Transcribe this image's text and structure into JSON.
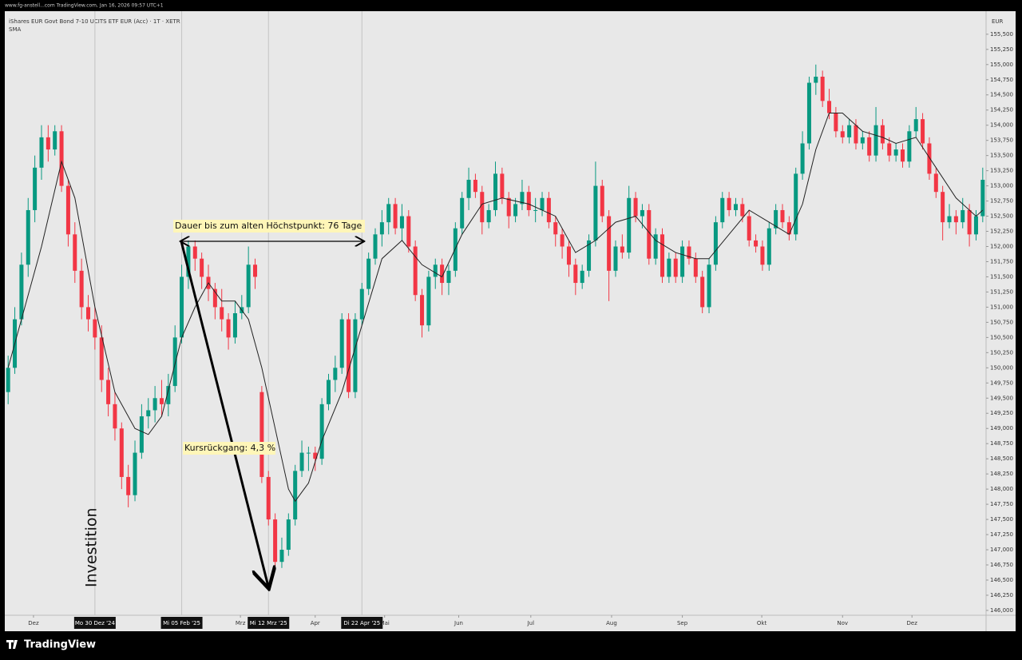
{
  "header": {
    "caption": "www.fg-anstell...com TradingView.com, Jan 16, 2026 09:57 UTC+1"
  },
  "chart_data": {
    "type": "candlestick",
    "title": "iShares EUR Govt Bond 7-10 UCITS ETF EUR (Acc) · 1T · XETR",
    "indicator_label": "SMA",
    "currency": "EUR",
    "up_color": "#089981",
    "down_color": "#f23645",
    "sma_color": "#222222",
    "grid": false,
    "xlim": [
      -0.5,
      146.5
    ],
    "ylim": [
      145.92,
      155.88
    ],
    "xticks": [
      {
        "value": 3.8,
        "label": "Dez"
      },
      {
        "value": 34.8,
        "label": "Mrz"
      },
      {
        "value": 46,
        "label": "Apr"
      },
      {
        "value": 56.4,
        "label": "Mai"
      },
      {
        "value": 67.5,
        "label": "Jun"
      },
      {
        "value": 78.3,
        "label": "Jul"
      },
      {
        "value": 90.4,
        "label": "Aug"
      },
      {
        "value": 101,
        "label": "Sep"
      },
      {
        "value": 112.9,
        "label": "Okt"
      },
      {
        "value": 125,
        "label": "Nov"
      },
      {
        "value": 135.4,
        "label": "Dez"
      }
    ],
    "date_markers": [
      {
        "value": 13,
        "label": "Mo 30 Dez '24"
      },
      {
        "value": 26,
        "label": "Mi 05 Feb '25"
      },
      {
        "value": 39,
        "label": "Mi 12 Mrz '25"
      },
      {
        "value": 53,
        "label": "Di 22 Apr '25"
      }
    ],
    "yticks": [
      {
        "value": 146.0,
        "label": "146,000"
      },
      {
        "value": 146.25,
        "label": "146,250"
      },
      {
        "value": 146.5,
        "label": "146,500"
      },
      {
        "value": 146.75,
        "label": "146,750"
      },
      {
        "value": 147.0,
        "label": "147,000"
      },
      {
        "value": 147.25,
        "label": "147,250"
      },
      {
        "value": 147.5,
        "label": "147,500"
      },
      {
        "value": 147.75,
        "label": "147,750"
      },
      {
        "value": 148.0,
        "label": "148,000"
      },
      {
        "value": 148.25,
        "label": "148,250"
      },
      {
        "value": 148.5,
        "label": "148,500"
      },
      {
        "value": 148.75,
        "label": "148,750"
      },
      {
        "value": 149.0,
        "label": "149,000"
      },
      {
        "value": 149.25,
        "label": "149,250"
      },
      {
        "value": 149.5,
        "label": "149,500"
      },
      {
        "value": 149.75,
        "label": "149,750"
      },
      {
        "value": 150.0,
        "label": "150,000"
      },
      {
        "value": 150.25,
        "label": "150,250"
      },
      {
        "value": 150.5,
        "label": "150,500"
      },
      {
        "value": 150.75,
        "label": "150,750"
      },
      {
        "value": 151.0,
        "label": "151,000"
      },
      {
        "value": 151.25,
        "label": "151,250"
      },
      {
        "value": 151.5,
        "label": "151,500"
      },
      {
        "value": 151.75,
        "label": "151,750"
      },
      {
        "value": 152.0,
        "label": "152,000"
      },
      {
        "value": 152.25,
        "label": "152,250"
      },
      {
        "value": 152.5,
        "label": "152,500"
      },
      {
        "value": 152.75,
        "label": "152,750"
      },
      {
        "value": 153.0,
        "label": "153,000"
      },
      {
        "value": 153.25,
        "label": "153,250"
      },
      {
        "value": 153.5,
        "label": "153,500"
      },
      {
        "value": 153.75,
        "label": "153,750"
      },
      {
        "value": 154.0,
        "label": "154,000"
      },
      {
        "value": 154.25,
        "label": "154,250"
      },
      {
        "value": 154.5,
        "label": "154,500"
      },
      {
        "value": 154.75,
        "label": "154,750"
      },
      {
        "value": 155.0,
        "label": "155,000"
      },
      {
        "value": 155.25,
        "label": "155,250"
      },
      {
        "value": 155.5,
        "label": "155,500"
      }
    ],
    "ohlc": [
      [
        149.6,
        150.2,
        149.4,
        150.0
      ],
      [
        150.0,
        151.0,
        149.9,
        150.8
      ],
      [
        150.8,
        151.9,
        150.7,
        151.7
      ],
      [
        151.7,
        152.8,
        151.5,
        152.6
      ],
      [
        152.6,
        153.5,
        152.4,
        153.3
      ],
      [
        153.3,
        154.0,
        153.1,
        153.8
      ],
      [
        153.8,
        154.0,
        153.4,
        153.6
      ],
      [
        153.6,
        154.0,
        153.5,
        153.9
      ],
      [
        153.9,
        154.0,
        152.9,
        153.0
      ],
      [
        153.0,
        153.1,
        152.0,
        152.2
      ],
      [
        152.2,
        152.4,
        151.4,
        151.6
      ],
      [
        151.6,
        151.8,
        150.8,
        151.0
      ],
      [
        151.0,
        151.2,
        150.6,
        150.8
      ],
      [
        150.8,
        151.0,
        150.3,
        150.5
      ],
      [
        150.5,
        150.7,
        149.6,
        149.8
      ],
      [
        149.8,
        150.0,
        149.2,
        149.4
      ],
      [
        149.4,
        149.6,
        148.8,
        149.0
      ],
      [
        149.0,
        149.1,
        148.0,
        148.2
      ],
      [
        148.2,
        148.4,
        147.7,
        147.9
      ],
      [
        147.9,
        148.8,
        147.8,
        148.6
      ],
      [
        148.6,
        149.4,
        148.5,
        149.2
      ],
      [
        149.2,
        149.5,
        149.0,
        149.3
      ],
      [
        149.3,
        149.7,
        149.1,
        149.5
      ],
      [
        149.5,
        149.8,
        149.2,
        149.4
      ],
      [
        149.4,
        149.9,
        149.2,
        149.7
      ],
      [
        149.7,
        150.7,
        149.6,
        150.5
      ],
      [
        150.5,
        151.7,
        150.4,
        151.5
      ],
      [
        151.5,
        152.1,
        151.3,
        152.0
      ],
      [
        152.0,
        152.1,
        151.6,
        151.8
      ],
      [
        151.8,
        151.9,
        151.3,
        151.5
      ],
      [
        151.5,
        151.7,
        151.1,
        151.3
      ],
      [
        151.3,
        151.4,
        150.8,
        151.0
      ],
      [
        151.0,
        151.3,
        150.6,
        150.8
      ],
      [
        150.8,
        150.9,
        150.3,
        150.5
      ],
      [
        150.5,
        151.1,
        150.4,
        150.9
      ],
      [
        150.9,
        151.2,
        150.8,
        151.0
      ],
      [
        151.0,
        152.0,
        150.9,
        151.7
      ],
      [
        151.7,
        151.8,
        151.3,
        151.5
      ],
      [
        149.6,
        149.7,
        148.1,
        148.2
      ],
      [
        148.2,
        148.3,
        147.4,
        147.5
      ],
      [
        147.5,
        147.6,
        146.7,
        146.8
      ],
      [
        146.8,
        147.2,
        146.7,
        147.0
      ],
      [
        147.0,
        147.6,
        146.9,
        147.5
      ],
      [
        147.5,
        148.4,
        147.4,
        148.3
      ],
      [
        148.3,
        148.8,
        148.2,
        148.6
      ],
      [
        148.6,
        148.7,
        148.3,
        148.6
      ],
      [
        148.6,
        148.7,
        148.3,
        148.5
      ],
      [
        148.5,
        149.5,
        148.4,
        149.4
      ],
      [
        149.4,
        149.9,
        149.3,
        149.8
      ],
      [
        149.8,
        150.2,
        149.6,
        150.0
      ],
      [
        150.0,
        150.9,
        149.9,
        150.8
      ],
      [
        150.8,
        150.9,
        149.5,
        149.6
      ],
      [
        149.6,
        150.9,
        149.5,
        150.8
      ],
      [
        150.8,
        151.4,
        150.7,
        151.3
      ],
      [
        151.3,
        151.9,
        151.2,
        151.8
      ],
      [
        151.8,
        152.3,
        151.7,
        152.2
      ],
      [
        152.2,
        152.6,
        152.0,
        152.4
      ],
      [
        152.4,
        152.8,
        152.2,
        152.7
      ],
      [
        152.7,
        152.8,
        152.2,
        152.3
      ],
      [
        152.3,
        152.7,
        152.1,
        152.5
      ],
      [
        152.5,
        152.6,
        151.9,
        152.0
      ],
      [
        152.0,
        152.1,
        151.1,
        151.2
      ],
      [
        151.2,
        151.3,
        150.5,
        150.7
      ],
      [
        150.7,
        151.6,
        150.6,
        151.5
      ],
      [
        151.5,
        151.8,
        151.3,
        151.7
      ],
      [
        151.7,
        151.8,
        151.2,
        151.4
      ],
      [
        151.4,
        151.7,
        151.2,
        151.6
      ],
      [
        151.6,
        152.4,
        151.5,
        152.3
      ],
      [
        152.3,
        152.9,
        152.2,
        152.8
      ],
      [
        152.8,
        153.3,
        152.6,
        153.1
      ],
      [
        153.1,
        153.2,
        152.8,
        152.9
      ],
      [
        152.9,
        153.0,
        152.2,
        152.4
      ],
      [
        152.4,
        152.7,
        152.3,
        152.6
      ],
      [
        152.6,
        153.4,
        152.5,
        153.2
      ],
      [
        153.2,
        153.3,
        152.7,
        152.8
      ],
      [
        152.8,
        152.9,
        152.3,
        152.5
      ],
      [
        152.5,
        152.8,
        152.4,
        152.7
      ],
      [
        152.7,
        153.1,
        152.6,
        152.9
      ],
      [
        152.9,
        153.0,
        152.5,
        152.6
      ],
      [
        152.6,
        152.8,
        152.4,
        152.6
      ],
      [
        152.6,
        152.9,
        152.5,
        152.8
      ],
      [
        152.8,
        152.9,
        152.3,
        152.4
      ],
      [
        152.4,
        152.5,
        152.0,
        152.2
      ],
      [
        152.2,
        152.3,
        151.8,
        152.0
      ],
      [
        152.0,
        152.1,
        151.5,
        151.7
      ],
      [
        151.7,
        151.8,
        151.2,
        151.4
      ],
      [
        151.4,
        151.7,
        151.3,
        151.6
      ],
      [
        151.6,
        152.2,
        151.5,
        152.1
      ],
      [
        152.1,
        153.4,
        152.0,
        153.0
      ],
      [
        153.0,
        153.1,
        152.4,
        152.5
      ],
      [
        152.5,
        152.6,
        151.1,
        151.6
      ],
      [
        151.6,
        152.1,
        151.5,
        152.0
      ],
      [
        152.0,
        152.2,
        151.8,
        151.9
      ],
      [
        151.9,
        153.0,
        151.8,
        152.8
      ],
      [
        152.8,
        152.9,
        152.4,
        152.5
      ],
      [
        152.5,
        152.7,
        152.3,
        152.6
      ],
      [
        152.6,
        152.7,
        151.7,
        151.8
      ],
      [
        151.8,
        152.3,
        151.7,
        152.2
      ],
      [
        152.2,
        152.3,
        151.4,
        151.5
      ],
      [
        151.5,
        151.9,
        151.4,
        151.8
      ],
      [
        151.8,
        151.9,
        151.4,
        151.5
      ],
      [
        151.5,
        152.1,
        151.4,
        152.0
      ],
      [
        152.0,
        152.1,
        151.7,
        151.8
      ],
      [
        151.8,
        151.9,
        151.4,
        151.5
      ],
      [
        151.5,
        151.6,
        150.9,
        151.0
      ],
      [
        151.0,
        151.8,
        150.9,
        151.7
      ],
      [
        151.7,
        152.5,
        151.6,
        152.4
      ],
      [
        152.4,
        152.9,
        152.3,
        152.8
      ],
      [
        152.8,
        152.9,
        152.5,
        152.6
      ],
      [
        152.6,
        152.8,
        152.5,
        152.7
      ],
      [
        152.7,
        152.8,
        152.4,
        152.5
      ],
      [
        152.5,
        152.6,
        152.0,
        152.1
      ],
      [
        152.1,
        152.2,
        151.9,
        152.0
      ],
      [
        152.0,
        152.1,
        151.6,
        151.7
      ],
      [
        151.7,
        152.4,
        151.6,
        152.3
      ],
      [
        152.3,
        152.7,
        152.2,
        152.6
      ],
      [
        152.6,
        152.7,
        152.3,
        152.4
      ],
      [
        152.4,
        152.5,
        152.1,
        152.2
      ],
      [
        152.2,
        153.3,
        152.1,
        153.2
      ],
      [
        153.2,
        153.9,
        153.1,
        153.7
      ],
      [
        153.7,
        154.8,
        153.6,
        154.7
      ],
      [
        154.7,
        155.0,
        154.5,
        154.8
      ],
      [
        154.8,
        154.9,
        154.3,
        154.4
      ],
      [
        154.4,
        154.6,
        154.1,
        154.2
      ],
      [
        154.2,
        154.3,
        153.8,
        153.9
      ],
      [
        153.9,
        154.0,
        153.7,
        153.8
      ],
      [
        153.8,
        154.1,
        153.7,
        154.0
      ],
      [
        154.0,
        154.1,
        153.6,
        153.7
      ],
      [
        153.7,
        153.9,
        153.6,
        153.8
      ],
      [
        153.8,
        153.9,
        153.4,
        153.5
      ],
      [
        153.5,
        154.3,
        153.4,
        154.0
      ],
      [
        154.0,
        154.1,
        153.6,
        153.7
      ],
      [
        153.7,
        153.8,
        153.4,
        153.5
      ],
      [
        153.5,
        153.7,
        153.4,
        153.6
      ],
      [
        153.6,
        153.7,
        153.3,
        153.4
      ],
      [
        153.4,
        154.0,
        153.3,
        153.9
      ],
      [
        153.9,
        154.3,
        153.8,
        154.1
      ],
      [
        154.1,
        154.2,
        153.6,
        153.7
      ],
      [
        153.7,
        153.8,
        153.1,
        153.2
      ],
      [
        153.2,
        153.3,
        152.8,
        152.9
      ],
      [
        152.9,
        153.0,
        152.1,
        152.4
      ],
      [
        152.4,
        152.7,
        152.3,
        152.5
      ],
      [
        152.5,
        152.6,
        152.2,
        152.4
      ],
      [
        152.4,
        152.8,
        152.3,
        152.6
      ],
      [
        152.6,
        152.7,
        152.0,
        152.2
      ],
      [
        152.2,
        152.6,
        152.1,
        152.5
      ],
      [
        152.5,
        153.3,
        152.4,
        153.1
      ]
    ],
    "sma": {
      "x": [
        0,
        5,
        8,
        10,
        13,
        16,
        19,
        21,
        23,
        26,
        28,
        30,
        32,
        34,
        36,
        38,
        40,
        42,
        43,
        45,
        47,
        50,
        53,
        56,
        59,
        62,
        65,
        68,
        71,
        74,
        78,
        82,
        85,
        88,
        91,
        94,
        97,
        100,
        103,
        105,
        108,
        111,
        114,
        117,
        119,
        121,
        123,
        125,
        128,
        131,
        133,
        136,
        139,
        142,
        145,
        146
      ],
      "values": [
        150.0,
        152.0,
        153.4,
        152.8,
        151.0,
        149.6,
        149.0,
        148.9,
        149.2,
        150.5,
        151.0,
        151.4,
        151.1,
        151.1,
        150.8,
        150.0,
        149.0,
        148.0,
        147.8,
        148.1,
        148.8,
        149.6,
        150.7,
        151.8,
        152.1,
        151.7,
        151.5,
        152.2,
        152.7,
        152.8,
        152.7,
        152.5,
        151.9,
        152.1,
        152.4,
        152.5,
        152.1,
        151.9,
        151.8,
        151.8,
        152.2,
        152.6,
        152.4,
        152.2,
        152.7,
        153.6,
        154.2,
        154.2,
        153.9,
        153.8,
        153.7,
        153.8,
        153.3,
        152.8,
        152.5,
        152.6
      ]
    },
    "annotations": [
      "Dauer bis zum alten Höchstpunkt: 76 Tage",
      "Kursrückgang: 4,3 %",
      "Investition"
    ]
  },
  "footer": {
    "brand": "TradingView"
  }
}
